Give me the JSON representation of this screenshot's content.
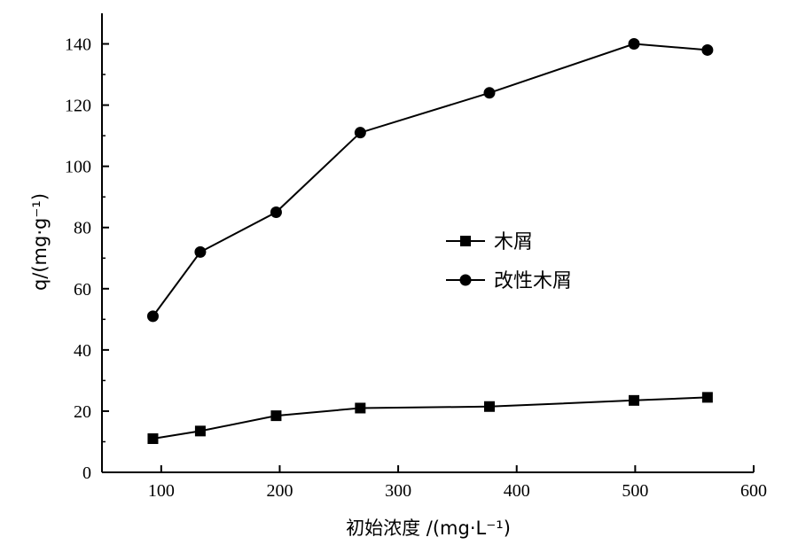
{
  "chart_data": {
    "type": "line",
    "title": "",
    "xlabel": "初始浓度 /(mg·L⁻¹)",
    "ylabel": "q/(mg·g⁻¹)",
    "xlim": [
      50,
      600
    ],
    "ylim": [
      0,
      150
    ],
    "xticks": [
      100,
      200,
      300,
      400,
      500,
      600
    ],
    "yticks": [
      0,
      20,
      40,
      60,
      80,
      100,
      120,
      140
    ],
    "grid": false,
    "legend_position": "center-right",
    "series": [
      {
        "name": "木屑",
        "marker": "square",
        "color": "#000000",
        "x": [
          93,
          133,
          197,
          268,
          377,
          499,
          561
        ],
        "y": [
          11,
          13.5,
          18.5,
          21,
          21.5,
          23.5,
          24.5
        ]
      },
      {
        "name": "改性木屑",
        "marker": "circle",
        "color": "#000000",
        "x": [
          93,
          133,
          197,
          268,
          377,
          499,
          561
        ],
        "y": [
          51,
          72,
          85,
          111,
          124,
          140,
          138
        ]
      }
    ]
  }
}
